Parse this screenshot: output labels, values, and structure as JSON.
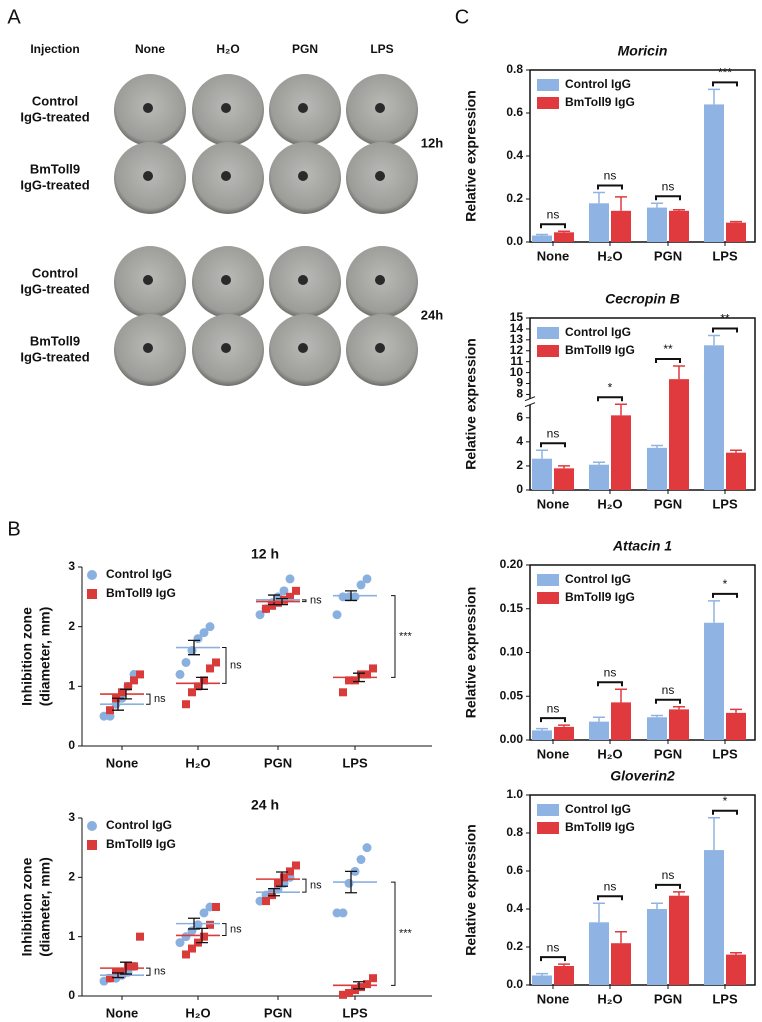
{
  "panel_labels": [
    "A",
    "B",
    "C"
  ],
  "panel_a": {
    "header": [
      "Injection",
      "None",
      "H₂O",
      "PGN",
      "LPS"
    ],
    "blocks": [
      {
        "time": "12h",
        "rows": [
          [
            "Control",
            "IgG-treated"
          ],
          [
            "BmToll9",
            "IgG-treated"
          ]
        ]
      },
      {
        "time": "24h",
        "rows": [
          [
            "Control",
            "IgG-treated"
          ],
          [
            "BmToll9",
            "IgG-treated"
          ]
        ]
      }
    ]
  },
  "chart_data": [
    {
      "type": "dot",
      "title": "12 h",
      "y_label": [
        "Inhibition zone",
        "(diameter, mm)"
      ],
      "categories": [
        "None",
        "H₂O",
        "PGN",
        "LPS"
      ],
      "ylim": [
        0,
        3
      ],
      "yticks": [
        0,
        1,
        2,
        3
      ],
      "series": [
        {
          "name": "Control IgG",
          "color": "#8ab0e0",
          "values": [
            [
              0.5,
              0.5,
              0.7,
              0.8,
              1.0,
              1.2
            ],
            [
              1.2,
              1.4,
              1.6,
              1.8,
              1.9,
              2.0
            ],
            [
              2.2,
              2.3,
              2.4,
              2.5,
              2.6,
              2.8
            ],
            [
              2.2,
              2.5,
              2.5,
              2.5,
              2.7,
              2.8
            ]
          ],
          "means": [
            0.7,
            1.65,
            2.45,
            2.52
          ],
          "sems": [
            0.1,
            0.12,
            0.08,
            0.08
          ]
        },
        {
          "name": "BmToll9 IgG",
          "color": "#d93a3a",
          "values": [
            [
              0.6,
              0.8,
              0.9,
              1.0,
              1.1,
              1.2
            ],
            [
              0.7,
              0.9,
              1.0,
              1.1,
              1.3,
              1.4
            ],
            [
              2.3,
              2.35,
              2.4,
              2.45,
              2.5,
              2.6
            ],
            [
              0.9,
              1.1,
              1.1,
              1.2,
              1.2,
              1.3
            ]
          ],
          "means": [
            0.87,
            1.05,
            2.42,
            1.15
          ],
          "sems": [
            0.08,
            0.1,
            0.05,
            0.07
          ]
        }
      ],
      "significance": [
        "ns",
        "ns",
        "ns",
        "***"
      ]
    },
    {
      "type": "dot",
      "title": "24 h",
      "y_label": [
        "Inhibition zone",
        "(diameter, mm)"
      ],
      "categories": [
        "None",
        "H₂O",
        "PGN",
        "LPS"
      ],
      "ylim": [
        0,
        3
      ],
      "yticks": [
        0,
        1,
        2,
        3
      ],
      "series": [
        {
          "name": "Control IgG",
          "color": "#8ab0e0",
          "values": [
            [
              0.25,
              0.3,
              0.3,
              0.35,
              0.4,
              0.5
            ],
            [
              0.9,
              1.0,
              1.1,
              1.2,
              1.4,
              1.5
            ],
            [
              1.6,
              1.7,
              1.75,
              1.8,
              1.9,
              2.0
            ],
            [
              1.4,
              1.4,
              1.9,
              2.1,
              2.3,
              2.5
            ]
          ],
          "means": [
            0.35,
            1.22,
            1.75,
            1.92
          ],
          "sems": [
            0.04,
            0.09,
            0.06,
            0.18
          ]
        },
        {
          "name": "BmToll9 IgG",
          "color": "#d93a3a",
          "values": [
            [
              0.3,
              0.4,
              0.4,
              0.5,
              0.5,
              1.0
            ],
            [
              0.7,
              0.8,
              0.9,
              1.0,
              1.2,
              1.5
            ],
            [
              1.6,
              1.7,
              1.9,
              2.0,
              2.1,
              2.2
            ],
            [
              0.02,
              0.05,
              0.1,
              0.15,
              0.2,
              0.3
            ]
          ],
          "means": [
            0.47,
            1.02,
            1.97,
            0.18
          ],
          "sems": [
            0.1,
            0.12,
            0.12,
            0.06
          ]
        }
      ],
      "significance": [
        "ns",
        "ns",
        "ns",
        "***"
      ]
    },
    {
      "type": "bar",
      "title": "Moricin",
      "y_label": "Relative expression",
      "categories": [
        "None",
        "H₂O",
        "PGN",
        "LPS"
      ],
      "ylim": [
        0,
        0.8
      ],
      "yticks": [
        {
          "value": 0,
          "label": "0.0"
        },
        0.2,
        0.4,
        0.6,
        0.8
      ],
      "series": [
        {
          "name": "Control IgG",
          "color": "#8fb3e3",
          "values": [
            0.03,
            0.18,
            0.16,
            0.64
          ],
          "errors": [
            0.005,
            0.05,
            0.02,
            0.07
          ]
        },
        {
          "name": "BmToll9 IgG",
          "color": "#e03a3e",
          "values": [
            0.045,
            0.145,
            0.145,
            0.09
          ],
          "errors": [
            0.005,
            0.065,
            0.005,
            0.005
          ]
        }
      ],
      "significance": [
        "ns",
        "ns",
        "ns",
        "***"
      ]
    },
    {
      "type": "bar",
      "title": "Cecropin B",
      "y_label": "Relative expression",
      "categories": [
        "None",
        "H₂O",
        "PGN",
        "LPS"
      ],
      "ylim": [
        0,
        15
      ],
      "axis_break": [
        7,
        7.7
      ],
      "yticks": [
        0,
        2,
        4,
        6,
        8,
        9,
        10,
        11,
        12,
        13,
        14,
        15
      ],
      "series": [
        {
          "name": "Control IgG",
          "color": "#8fb3e3",
          "values": [
            2.6,
            2.1,
            3.5,
            12.5
          ],
          "errors": [
            0.7,
            0.2,
            0.2,
            0.9
          ]
        },
        {
          "name": "BmToll9 IgG",
          "color": "#e03a3e",
          "values": [
            1.8,
            6.2,
            9.4,
            3.1
          ],
          "errors": [
            0.2,
            0.9,
            1.2,
            0.2
          ]
        }
      ],
      "significance": [
        "ns",
        "*",
        "**",
        "**"
      ]
    },
    {
      "type": "bar",
      "title": "Attacin 1",
      "y_label": "Relative expression",
      "categories": [
        "None",
        "H₂O",
        "PGN",
        "LPS"
      ],
      "ylim": [
        0,
        0.2
      ],
      "yticks": [
        {
          "value": 0,
          "label": "0.00"
        },
        0.05,
        {
          "value": 0.1,
          "label": "0.10"
        },
        0.15,
        {
          "value": 0.2,
          "label": "0.20"
        }
      ],
      "series": [
        {
          "name": "Control IgG",
          "color": "#8fb3e3",
          "values": [
            0.011,
            0.021,
            0.026,
            0.134
          ],
          "errors": [
            0.002,
            0.005,
            0.002,
            0.025
          ]
        },
        {
          "name": "BmToll9 IgG",
          "color": "#e03a3e",
          "values": [
            0.015,
            0.043,
            0.035,
            0.031
          ],
          "errors": [
            0.002,
            0.015,
            0.003,
            0.004
          ]
        }
      ],
      "significance": [
        "ns",
        "ns",
        "ns",
        "*"
      ]
    },
    {
      "type": "bar",
      "title": "Gloverin2",
      "y_label": "Relative expression",
      "categories": [
        "None",
        "H₂O",
        "PGN",
        "LPS"
      ],
      "ylim": [
        0,
        1
      ],
      "yticks": [
        {
          "value": 0,
          "label": "0.0"
        },
        0.2,
        0.4,
        0.6,
        0.8,
        {
          "value": 1,
          "label": "1.0"
        }
      ],
      "series": [
        {
          "name": "Control IgG",
          "color": "#8fb3e3",
          "values": [
            0.05,
            0.33,
            0.4,
            0.71
          ],
          "errors": [
            0.01,
            0.1,
            0.03,
            0.17
          ]
        },
        {
          "name": "BmToll9 IgG",
          "color": "#e03a3e",
          "values": [
            0.1,
            0.22,
            0.47,
            0.16
          ],
          "errors": [
            0.01,
            0.06,
            0.02,
            0.01
          ]
        }
      ],
      "significance": [
        "ns",
        "ns",
        "ns",
        "*"
      ]
    }
  ]
}
